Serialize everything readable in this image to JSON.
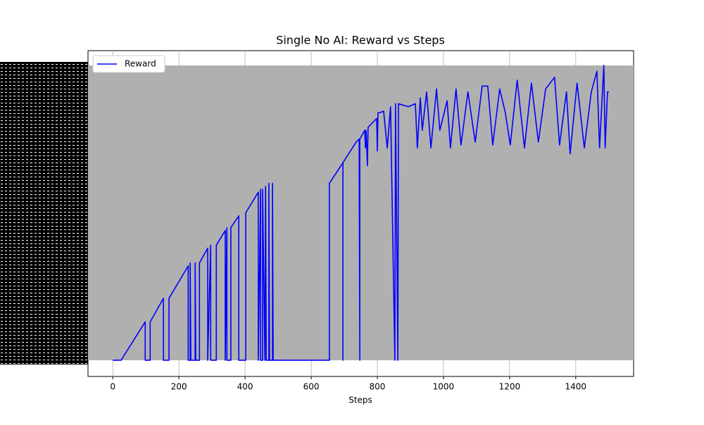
{
  "chart_data": {
    "type": "line",
    "title": "Single No AI: Reward vs Steps",
    "x_label": "Steps",
    "x": [
      0,
      25,
      98,
      98,
      113,
      113,
      153,
      153,
      170,
      170,
      228,
      228,
      234,
      234,
      236,
      249,
      249,
      251,
      262,
      262,
      287,
      287,
      296,
      296,
      313,
      313,
      340,
      340,
      345,
      345,
      357,
      357,
      381,
      381,
      402,
      402,
      440,
      440,
      447,
      447,
      453,
      453,
      460,
      462,
      464,
      472,
      472,
      474,
      483,
      483,
      485,
      655,
      655,
      696,
      696,
      696,
      736,
      745,
      747,
      747,
      762,
      764,
      766,
      770,
      772,
      798,
      800,
      802,
      809,
      819,
      830,
      840,
      853,
      855,
      862,
      864,
      894,
      915,
      921,
      930,
      936,
      949,
      962,
      979,
      989,
      1011,
      1021,
      1038,
      1053,
      1074,
      1096,
      1117,
      1134,
      1149,
      1170,
      1187,
      1202,
      1223,
      1245,
      1266,
      1287,
      1309,
      1336,
      1351,
      1372,
      1383,
      1404,
      1426,
      1447,
      1464,
      1472,
      1485,
      1489,
      1496,
      1500
    ],
    "series": [
      {
        "name": "Reward",
        "color": "#0000ff",
        "values": [
          0,
          0,
          13,
          0,
          0,
          13,
          21,
          0,
          0,
          21,
          32,
          0,
          0,
          33,
          0,
          0,
          33,
          0,
          0,
          33,
          38,
          0,
          39,
          0,
          0,
          39,
          44,
          0,
          45,
          0,
          0,
          45,
          49,
          0,
          0,
          50,
          57,
          0,
          58,
          0,
          0,
          58,
          0,
          59,
          0,
          0,
          60,
          0,
          0,
          60,
          0,
          0,
          60,
          67,
          0,
          67,
          74,
          75,
          0,
          75,
          78,
          72,
          78,
          66,
          79,
          82,
          71,
          84,
          84,
          84.5,
          72,
          86,
          0,
          87,
          0,
          87,
          86,
          87,
          72,
          89,
          78,
          91,
          72,
          92,
          78,
          88,
          72,
          92,
          73,
          91,
          74,
          93,
          93,
          73,
          92,
          84,
          73,
          95,
          72,
          94,
          74,
          92,
          96,
          73,
          91,
          70,
          94,
          72,
          91,
          98,
          72,
          100,
          72,
          91,
          91
        ]
      }
    ],
    "xlim": [
      -75,
      1575
    ],
    "ylim": [
      -5.5,
      105
    ],
    "xticks": [
      0,
      200,
      400,
      600,
      800,
      1000,
      1200,
      1400
    ],
    "legend": "upper left"
  }
}
